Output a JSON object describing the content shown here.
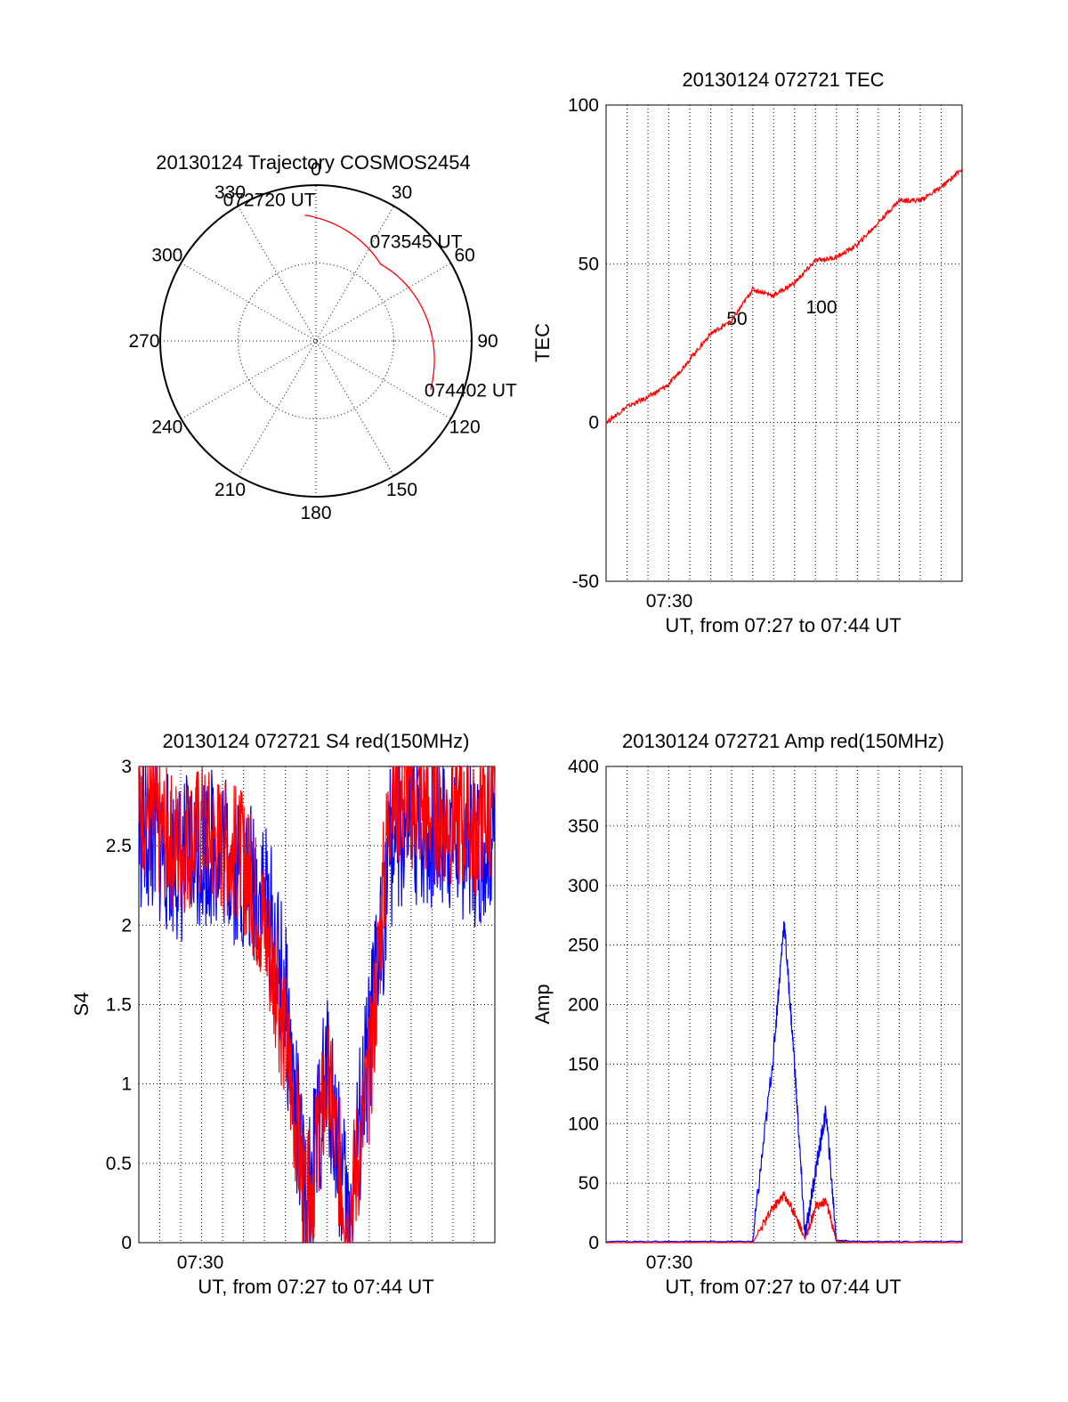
{
  "chart_data": [
    {
      "type": "polar",
      "title": "20130124 Trajectory COSMOS2454",
      "azimuth_labels": [
        "0",
        "30",
        "60",
        "90",
        "120",
        "150",
        "180",
        "210",
        "240",
        "270",
        "300",
        "330"
      ],
      "elevation_labels": [
        "50",
        "100"
      ],
      "trajectory": {
        "color": "#ff0000",
        "points": [
          {
            "time": "072720 UT",
            "az": 355,
            "el": 17
          },
          {
            "time": "073545 UT",
            "az": 40,
            "el": 32
          },
          {
            "time": "074402 UT",
            "az": 113,
            "el": 18
          }
        ]
      }
    },
    {
      "type": "line",
      "title": "20130124 072721 TEC",
      "ylabel": "TEC",
      "xlabel": "UT, from 07:27 to 07:44 UT",
      "x_tick_label": "07:30",
      "ylim": [
        -50,
        100
      ],
      "yticks": [
        "100",
        "50",
        "0",
        "-50"
      ],
      "series": [
        {
          "color": "#ff0000",
          "x": [
            "07:27",
            "07:28",
            "07:29",
            "07:30",
            "07:31",
            "07:32",
            "07:33",
            "07:34",
            "07:35",
            "07:36",
            "07:37",
            "07:38",
            "07:39",
            "07:40",
            "07:41",
            "07:42",
            "07:43",
            "07:44"
          ],
          "y": [
            0,
            5,
            8,
            12,
            20,
            28,
            32,
            42,
            40,
            44,
            51,
            52,
            56,
            63,
            70,
            70,
            74,
            80
          ]
        }
      ]
    },
    {
      "type": "line",
      "title": "20130124 072721 S4 red(150MHz)",
      "ylabel": "S4",
      "xlabel": "UT, from 07:27 to 07:44 UT",
      "x_tick_label": "07:30",
      "ylim": [
        0,
        3
      ],
      "yticks": [
        "3",
        "2.5",
        "2",
        "1.5",
        "1",
        "0.5",
        "0"
      ],
      "series": [
        {
          "color": "#0000ff",
          "x": [
            "07:27",
            "07:28",
            "07:29",
            "07:30",
            "07:31",
            "07:32",
            "07:33",
            "07:34",
            "07:35",
            "07:36",
            "07:37",
            "07:38",
            "07:39",
            "07:40",
            "07:41",
            "07:42",
            "07:43",
            "07:44"
          ],
          "y": [
            2.6,
            2.5,
            2.4,
            2.5,
            2.5,
            2.3,
            2.2,
            1.5,
            0.15,
            1.1,
            0.12,
            1.2,
            2.5,
            2.6,
            2.6,
            2.6,
            2.5,
            2.6
          ]
        },
        {
          "color": "#ff0000",
          "x": [
            "07:27",
            "07:28",
            "07:29",
            "07:30",
            "07:31",
            "07:32",
            "07:33",
            "07:34",
            "07:35",
            "07:36",
            "07:37",
            "07:38",
            "07:39",
            "07:40",
            "07:41",
            "07:42",
            "07:43",
            "07:44"
          ],
          "y": [
            2.8,
            2.6,
            2.5,
            2.6,
            2.5,
            2.4,
            2.0,
            1.3,
            0.18,
            1.0,
            0.15,
            1.0,
            2.8,
            2.8,
            2.7,
            2.7,
            2.6,
            2.8
          ]
        }
      ]
    },
    {
      "type": "line",
      "title": "20130124 072721 Amp red(150MHz)",
      "ylabel": "Amp",
      "xlabel": "UT, from 07:27 to 07:44 UT",
      "x_tick_label": "07:30",
      "ylim": [
        0,
        400
      ],
      "yticks": [
        "400",
        "350",
        "300",
        "250",
        "200",
        "150",
        "100",
        "50",
        "0"
      ],
      "series": [
        {
          "color": "#0000ff",
          "x": [
            "07:27",
            "07:31",
            "07:34",
            "07:35",
            "07:35.5",
            "07:36",
            "07:36.5",
            "07:37",
            "07:37.5",
            "07:38",
            "07:39",
            "07:44"
          ],
          "y": [
            1,
            1,
            1,
            160,
            270,
            150,
            5,
            60,
            110,
            2,
            1,
            1
          ]
        },
        {
          "color": "#ff0000",
          "x": [
            "07:27",
            "07:31",
            "07:34",
            "07:35",
            "07:35.5",
            "07:36",
            "07:36.5",
            "07:37",
            "07:37.5",
            "07:38",
            "07:39",
            "07:44"
          ],
          "y": [
            0,
            0,
            0,
            30,
            40,
            25,
            3,
            30,
            35,
            1,
            0,
            0
          ]
        }
      ]
    }
  ]
}
